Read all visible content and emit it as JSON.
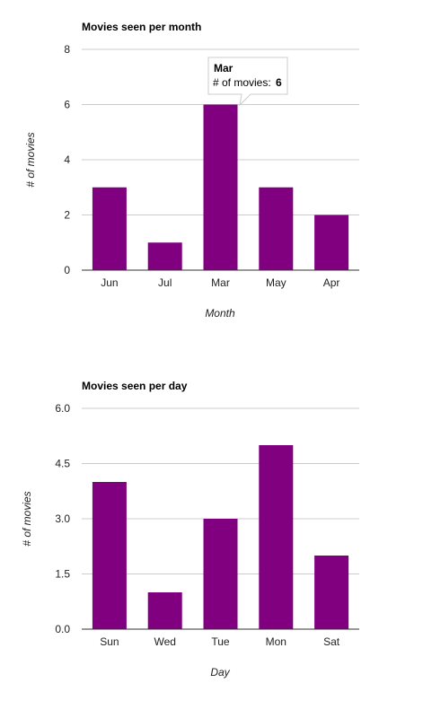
{
  "chart_data": [
    {
      "type": "bar",
      "title": "Movies seen per month",
      "xlabel": "Month",
      "ylabel": "# of movies",
      "categories": [
        "Jun",
        "Jul",
        "Mar",
        "May",
        "Apr"
      ],
      "series": [
        {
          "values": [
            3,
            1,
            6,
            3,
            2
          ]
        }
      ],
      "ylim": [
        0,
        8
      ],
      "yticks": [
        "0",
        "2",
        "4",
        "6",
        "8"
      ],
      "grid": true,
      "bar_color": "#800080",
      "tooltip": {
        "category": "Mar",
        "label": "# of movies:",
        "value": "6"
      }
    },
    {
      "type": "bar",
      "title": "Movies seen per day",
      "xlabel": "Day",
      "ylabel": "# of movies",
      "categories": [
        "Sun",
        "Wed",
        "Tue",
        "Mon",
        "Sat"
      ],
      "series": [
        {
          "values": [
            4,
            1,
            3,
            5,
            2
          ]
        }
      ],
      "ylim": [
        0,
        6
      ],
      "yticks": [
        "0.0",
        "1.5",
        "3.0",
        "4.5",
        "6.0"
      ],
      "grid": true,
      "bar_color": "#800080"
    }
  ]
}
